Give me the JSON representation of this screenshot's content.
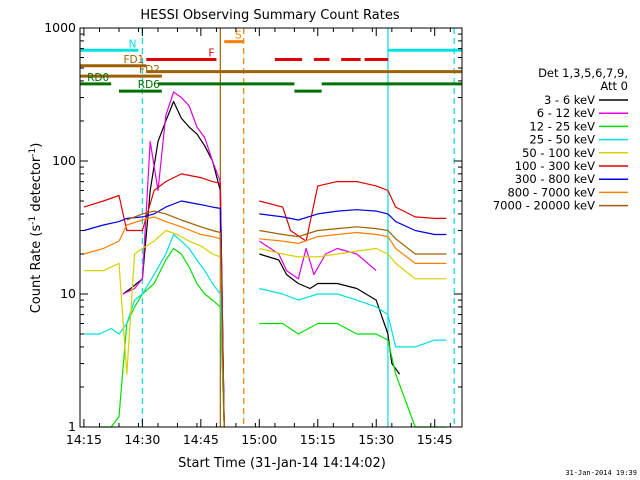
{
  "chart_data": {
    "type": "line",
    "title": "HESSI Observing Summary Count Rates",
    "xlabel": "Start Time (31-Jan-14 14:14:02)",
    "ylabel": "Count Rate (s",
    "ylabel_sup": "-1",
    "ylabel_end": " detector",
    "ylabel_sup2": "-1",
    "ylabel_close": ")",
    "yscale": "log",
    "ylim": [
      1,
      1000
    ],
    "xlim": [
      "14:14",
      "15:52"
    ],
    "x_ticks": [
      "14:15",
      "14:30",
      "14:45",
      "15:00",
      "15:15",
      "15:30",
      "15:45"
    ],
    "y_ticks": [
      "1",
      "10",
      "100",
      "1000"
    ],
    "legend_title": [
      "Det 1,3,5,6,7,9,",
      "Att 0"
    ],
    "legend_position": "right",
    "timestamp": "31-Jan-2014 19:39",
    "colors": {
      "black": "#000000",
      "magenta": "#e000e0",
      "green": "#00e000",
      "cyan": "#00e0e0",
      "yellow": "#d8d000",
      "red": "#e00000",
      "blue": "#0000e0",
      "orange": "#ff8000",
      "brown": "#a06000",
      "darkgreen": "#007000"
    },
    "series": [
      {
        "name": "3 - 6 keV",
        "color": "#000000",
        "x": [
          "14:25",
          "14:27",
          "14:30",
          "14:32",
          "14:34",
          "14:36",
          "14:38",
          "14:40",
          "14:42",
          "14:44",
          "14:46",
          "14:48",
          "14:50",
          "14:51",
          "14:53",
          "15:00",
          "15:05",
          "15:07",
          "15:10",
          "15:13",
          "15:15",
          "15:20",
          "15:25",
          "15:30",
          "15:33",
          "15:34",
          "15:36"
        ],
        "y": [
          10,
          11,
          13,
          60,
          140,
          200,
          280,
          210,
          180,
          160,
          130,
          100,
          60,
          1,
          null,
          20,
          18,
          14,
          12,
          11,
          12,
          12,
          11,
          9,
          5,
          3,
          2.5
        ]
      },
      {
        "name": "6 - 12 keV",
        "color": "#e000e0",
        "x": [
          "14:25",
          "14:28",
          "14:30",
          "14:32",
          "14:34",
          "14:36",
          "14:38",
          "14:40",
          "14:42",
          "14:44",
          "14:46",
          "14:48",
          "14:50",
          "14:51",
          "14:53",
          "15:00",
          "15:05",
          "15:07",
          "15:10",
          "15:12",
          "15:14",
          "15:17",
          "15:20",
          "15:25",
          "15:30"
        ],
        "y": [
          10,
          11,
          13,
          140,
          60,
          220,
          330,
          300,
          260,
          180,
          150,
          100,
          70,
          1,
          null,
          25,
          20,
          15,
          13,
          22,
          14,
          20,
          22,
          20,
          15
        ]
      },
      {
        "name": "12 - 25 keV",
        "color": "#00e000",
        "x": [
          "14:19",
          "14:22",
          "14:24",
          "14:26",
          "14:28",
          "14:30",
          "14:33",
          "14:36",
          "14:38",
          "14:40",
          "14:42",
          "14:44",
          "14:46",
          "14:48",
          "14:50",
          "14:51",
          "14:53",
          "15:00",
          "15:06",
          "15:10",
          "15:15",
          "15:20",
          "15:25",
          "15:30",
          "15:33",
          "15:35",
          "15:40",
          "15:45",
          "15:48"
        ],
        "y": [
          1,
          1,
          1.2,
          6,
          8,
          10,
          12,
          18,
          22,
          20,
          16,
          12,
          10,
          9,
          8,
          1,
          null,
          6,
          6,
          5,
          6,
          6,
          5,
          5,
          4.5,
          2.5,
          1,
          1,
          1
        ]
      },
      {
        "name": "25 - 50 keV",
        "color": "#00e0e0",
        "x": [
          "14:15",
          "14:19",
          "14:22",
          "14:24",
          "14:26",
          "14:28",
          "14:30",
          "14:33",
          "14:36",
          "14:38",
          "14:40",
          "14:42",
          "14:44",
          "14:46",
          "14:48",
          "14:50",
          "14:51",
          "14:53",
          "15:00",
          "15:06",
          "15:10",
          "15:15",
          "15:20",
          "15:25",
          "15:30",
          "15:33",
          "15:35",
          "15:40",
          "15:45",
          "15:48"
        ],
        "y": [
          5,
          5,
          5.5,
          5,
          6,
          9,
          10,
          14,
          20,
          28,
          25,
          22,
          18,
          15,
          12,
          10,
          1,
          null,
          11,
          10,
          9,
          10,
          10,
          9,
          8,
          7,
          4,
          4,
          4.5,
          4.5
        ]
      },
      {
        "name": "50 - 100 keV",
        "color": "#d8d000",
        "x": [
          "14:15",
          "14:20",
          "14:24",
          "14:26",
          "14:28",
          "14:30",
          "14:33",
          "14:36",
          "14:39",
          "14:42",
          "14:45",
          "14:48",
          "14:50",
          "14:51",
          "14:53",
          "15:00",
          "15:06",
          "15:10",
          "15:15",
          "15:20",
          "15:25",
          "15:30",
          "15:33",
          "15:35",
          "15:40",
          "15:45",
          "15:48"
        ],
        "y": [
          15,
          15,
          17,
          2.5,
          20,
          22,
          25,
          30,
          28,
          25,
          23,
          20,
          19,
          1,
          null,
          22,
          20,
          19,
          19,
          20,
          21,
          22,
          20,
          17,
          13,
          13,
          13
        ]
      },
      {
        "name": "100 - 300 keV",
        "color": "#e00000",
        "x": [
          "14:15",
          "14:20",
          "14:24",
          "14:26",
          "14:30",
          "14:33",
          "14:36",
          "14:40",
          "14:45",
          "14:48",
          "14:50",
          "14:51",
          "14:53",
          "15:00",
          "15:06",
          "15:08",
          "15:12",
          "15:15",
          "15:20",
          "15:25",
          "15:30",
          "15:33",
          "15:35",
          "15:40",
          "15:45",
          "15:48"
        ],
        "y": [
          45,
          50,
          55,
          30,
          30,
          60,
          70,
          80,
          75,
          70,
          68,
          1,
          null,
          50,
          45,
          30,
          25,
          65,
          70,
          70,
          65,
          60,
          45,
          38,
          37,
          37
        ]
      },
      {
        "name": "300 - 800 keV",
        "color": "#0000e0",
        "x": [
          "14:15",
          "14:20",
          "14:24",
          "14:26",
          "14:30",
          "14:33",
          "14:36",
          "14:40",
          "14:45",
          "14:48",
          "14:50",
          "14:51",
          "14:53",
          "15:00",
          "15:06",
          "15:10",
          "15:15",
          "15:20",
          "15:25",
          "15:30",
          "15:33",
          "15:35",
          "15:40",
          "15:45",
          "15:48"
        ],
        "y": [
          30,
          33,
          35,
          37,
          38,
          40,
          45,
          50,
          47,
          45,
          44,
          1,
          null,
          40,
          38,
          36,
          40,
          42,
          43,
          42,
          40,
          35,
          30,
          28,
          28
        ]
      },
      {
        "name": "800 - 7000 keV",
        "color": "#ff8000",
        "x": [
          "14:15",
          "14:20",
          "14:24",
          "14:26",
          "14:30",
          "14:33",
          "14:36",
          "14:40",
          "14:45",
          "14:48",
          "14:50",
          "14:51",
          "14:53",
          "15:00",
          "15:06",
          "15:10",
          "15:15",
          "15:20",
          "15:25",
          "15:30",
          "15:33",
          "15:35",
          "15:40",
          "15:45",
          "15:48"
        ],
        "y": [
          20,
          22,
          25,
          33,
          36,
          38,
          35,
          32,
          28,
          27,
          26,
          1,
          null,
          26,
          25,
          24,
          27,
          28,
          29,
          28,
          27,
          22,
          17,
          17,
          17
        ]
      },
      {
        "name": "7000 - 20000 keV",
        "color": "#a06000",
        "x": [
          "14:15",
          "14:20",
          "14:24",
          "14:26",
          "14:30",
          "14:33",
          "14:36",
          "14:40",
          "14:45",
          "14:48",
          "14:50",
          "14:51",
          "14:53",
          "15:00",
          "15:06",
          "15:10",
          "15:15",
          "15:20",
          "15:25",
          "15:30",
          "15:33",
          "15:35",
          "15:40",
          "15:45",
          "15:48"
        ],
        "y": [
          null,
          null,
          null,
          36,
          40,
          42,
          40,
          36,
          32,
          30,
          29,
          1,
          null,
          30,
          28,
          27,
          30,
          31,
          32,
          31,
          30,
          26,
          20,
          20,
          20
        ]
      }
    ],
    "flags": [
      {
        "label": "N",
        "color": "#00e0e0",
        "x": [
          "14:14",
          "14:29"
        ],
        "y": 680
      },
      {
        "label": "N",
        "color": "#00e0e0",
        "x": [
          "15:33",
          "15:52"
        ],
        "y": 680,
        "hide_label": true
      },
      {
        "label": "S",
        "color": "#ff8000",
        "x": [
          "14:51",
          "14:56"
        ],
        "y": 790
      },
      {
        "label": "F",
        "color": "#e00000",
        "x": [
          "14:31",
          "14:49"
        ],
        "y": 580
      },
      {
        "label": "F",
        "color": "#e00000",
        "x": [
          "15:04",
          "15:11"
        ],
        "y": 580,
        "hide_label": true
      },
      {
        "label": "F",
        "color": "#e00000",
        "x": [
          "15:14",
          "15:18"
        ],
        "y": 580,
        "hide_label": true
      },
      {
        "label": "F",
        "color": "#e00000",
        "x": [
          "15:21",
          "15:26"
        ],
        "y": 580,
        "hide_label": true
      },
      {
        "label": "F",
        "color": "#e00000",
        "x": [
          "15:27",
          "15:33"
        ],
        "y": 580,
        "hide_label": true
      },
      {
        "label": "FD1",
        "color": "#a06000",
        "x": [
          "14:14",
          "14:31"
        ],
        "y": 520
      },
      {
        "label": "FD1",
        "color": "#a06000",
        "x": [
          "14:31",
          "15:52"
        ],
        "y": 470,
        "hide_label": true
      },
      {
        "label": "FD2",
        "color": "#a06000",
        "x": [
          "14:14",
          "14:35"
        ],
        "y": 435
      },
      {
        "label": "RD0",
        "color": "#007000",
        "x": [
          "14:14",
          "14:22"
        ],
        "y": 380
      },
      {
        "label": "RD0",
        "color": "#007000",
        "x": [
          "14:34",
          "15:09"
        ],
        "y": 380,
        "hide_label": true
      },
      {
        "label": "RD0",
        "color": "#007000",
        "x": [
          "15:16",
          "15:52"
        ],
        "y": 380,
        "hide_label": true
      },
      {
        "label": "RD6",
        "color": "#007000",
        "x": [
          "14:24",
          "14:35"
        ],
        "y": 335
      },
      {
        "label": "RD6",
        "color": "#007000",
        "x": [
          "15:09",
          "15:16"
        ],
        "y": 335,
        "hide_label": true
      }
    ],
    "vlines": [
      {
        "x": "14:30",
        "color": "#00e0e0",
        "style": "dashed"
      },
      {
        "x": "14:50",
        "color": "#a06000",
        "style": "solid"
      },
      {
        "x": "14:56",
        "color": "#ff8000",
        "style": "dashed"
      },
      {
        "x": "15:33",
        "color": "#00e0e0",
        "style": "solid"
      },
      {
        "x": "15:50",
        "color": "#00e0e0",
        "style": "dashed"
      }
    ]
  }
}
